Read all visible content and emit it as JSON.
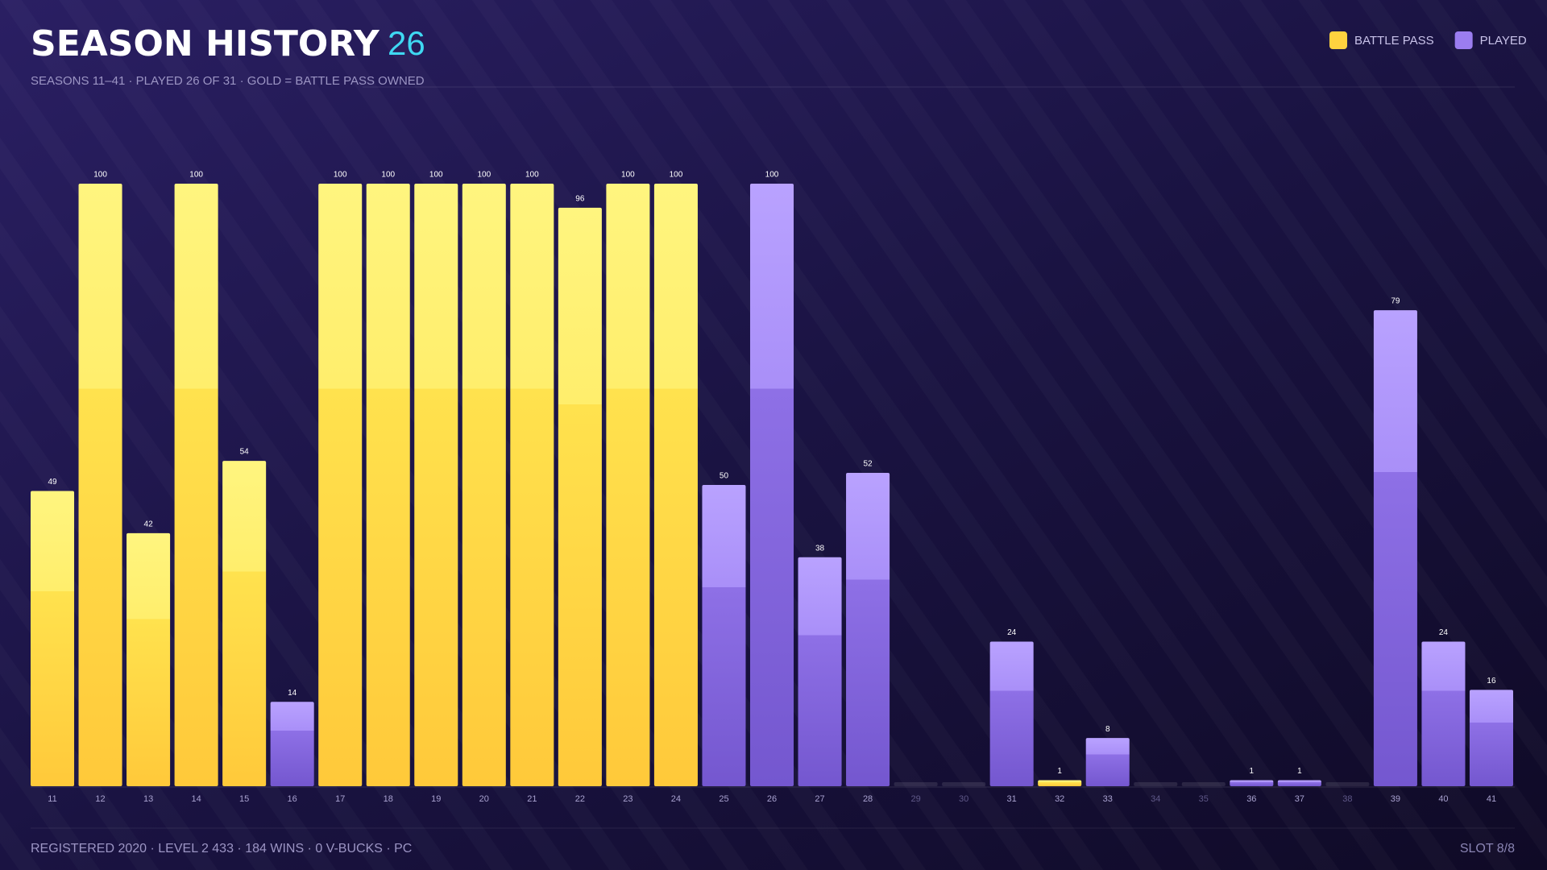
{
  "chart_data": {
    "type": "bar",
    "title": "SEASON HISTORY",
    "title_count": "26",
    "subtitle": "SEASONS 11–41 · PLAYED 26 OF 31 · GOLD = BATTLE PASS OWNED",
    "footer": "REGISTERED 2020 · LEVEL 2 433 · 184 WINS · 0 V-BUCKS · PC",
    "footer_right": "SLOT 8/8",
    "categories": [
      "11",
      "12",
      "13",
      "14",
      "15",
      "16",
      "17",
      "18",
      "19",
      "20",
      "21",
      "22",
      "23",
      "24",
      "25",
      "26",
      "27",
      "28",
      "29",
      "30",
      "31",
      "32",
      "33",
      "34",
      "35",
      "36",
      "37",
      "38",
      "39",
      "40",
      "41"
    ],
    "series": [
      {
        "name": "BATTLE PASS",
        "color": "#ffd23f",
        "values": [
          49,
          100,
          42,
          100,
          54,
          null,
          100,
          100,
          100,
          100,
          100,
          96,
          100,
          100,
          null,
          null,
          null,
          null,
          null,
          null,
          null,
          1,
          null,
          null,
          null,
          null,
          null,
          null,
          null,
          null,
          null
        ]
      },
      {
        "name": "PLAYED",
        "color": "#9b7df0",
        "values": [
          null,
          null,
          null,
          null,
          null,
          14,
          null,
          null,
          null,
          null,
          null,
          null,
          null,
          null,
          50,
          100,
          38,
          52,
          null,
          null,
          24,
          null,
          8,
          null,
          null,
          1,
          1,
          null,
          79,
          24,
          16
        ]
      }
    ],
    "ylim": [
      0,
      100
    ]
  }
}
